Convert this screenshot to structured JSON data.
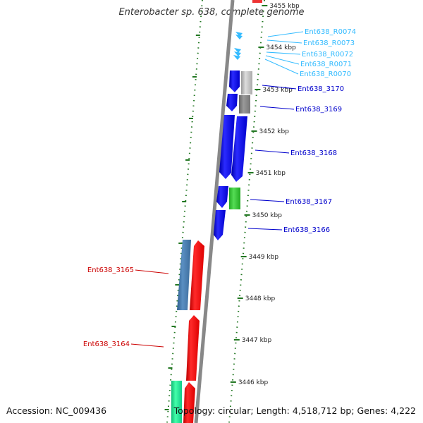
{
  "title": "Enterobacter sp. 638, complete genome",
  "footer": {
    "accession": "Accession: NC_009436",
    "summary": "Topology: circular; Length: 4,518,712 bp; Genes: 4,222"
  },
  "colors": {
    "forward_cds": "#0000ee",
    "reverse_cds": "#ee1111",
    "rna": "#33bbff",
    "backbone": "#888888",
    "tick": "#227722"
  },
  "ticks": [
    {
      "label": "3455 kbp"
    },
    {
      "label": "3454 kbp"
    },
    {
      "label": "3453 kbp"
    },
    {
      "label": "3452 kbp"
    },
    {
      "label": "3451 kbp"
    },
    {
      "label": "3450 kbp"
    },
    {
      "label": "3449 kbp"
    },
    {
      "label": "3448 kbp"
    },
    {
      "label": "3447 kbp"
    },
    {
      "label": "3446 kbp"
    }
  ],
  "features": {
    "forward": [
      {
        "label": "Ent638_R0074"
      },
      {
        "label": "Ent638_R0073"
      },
      {
        "label": "Ent638_R0072"
      },
      {
        "label": "Ent638_R0071"
      },
      {
        "label": "Ent638_R0070"
      },
      {
        "label": "Ent638_3170"
      },
      {
        "label": "Ent638_3169"
      },
      {
        "label": "Ent638_3168"
      },
      {
        "label": "Ent638_3167"
      },
      {
        "label": "Ent638_3166"
      }
    ],
    "reverse": [
      {
        "label": "Ent638_3165"
      },
      {
        "label": "Ent638_3164"
      }
    ]
  }
}
